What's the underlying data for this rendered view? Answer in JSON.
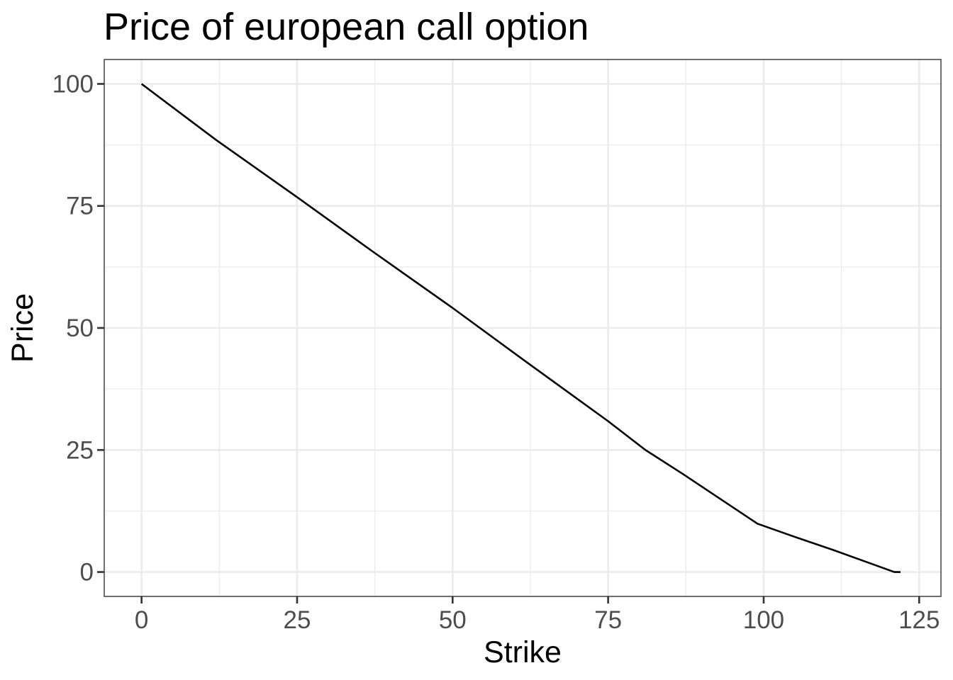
{
  "chart_data": {
    "type": "line",
    "title": "Price of european call option",
    "xlabel": "Strike",
    "ylabel": "Price",
    "xlim": [
      -6,
      128.5
    ],
    "ylim": [
      -5,
      105
    ],
    "x_ticks": [
      0,
      25,
      50,
      75,
      100,
      125
    ],
    "x_tick_labels": [
      "0",
      "25",
      "50",
      "75",
      "100",
      "125"
    ],
    "x_minor_ticks": [
      12.5,
      37.5,
      62.5,
      87.5,
      112.5
    ],
    "y_ticks": [
      0,
      25,
      50,
      75,
      100
    ],
    "y_tick_labels": [
      "0",
      "25",
      "50",
      "75",
      "100"
    ],
    "y_minor_ticks": [
      12.5,
      37.5,
      62.5,
      87.5
    ],
    "grid": true,
    "legend": "none",
    "series": [
      {
        "color": "#000000",
        "x": [
          0,
          12,
          25,
          37,
          50,
          62,
          75,
          81,
          87,
          93,
          99,
          105,
          111,
          116,
          121,
          122
        ],
        "y": [
          100,
          88.5,
          76.8,
          65.8,
          54.1,
          42.9,
          30.9,
          25,
          20.1,
          15,
          9.9,
          7.2,
          4.6,
          2.3,
          0,
          0
        ]
      }
    ]
  }
}
